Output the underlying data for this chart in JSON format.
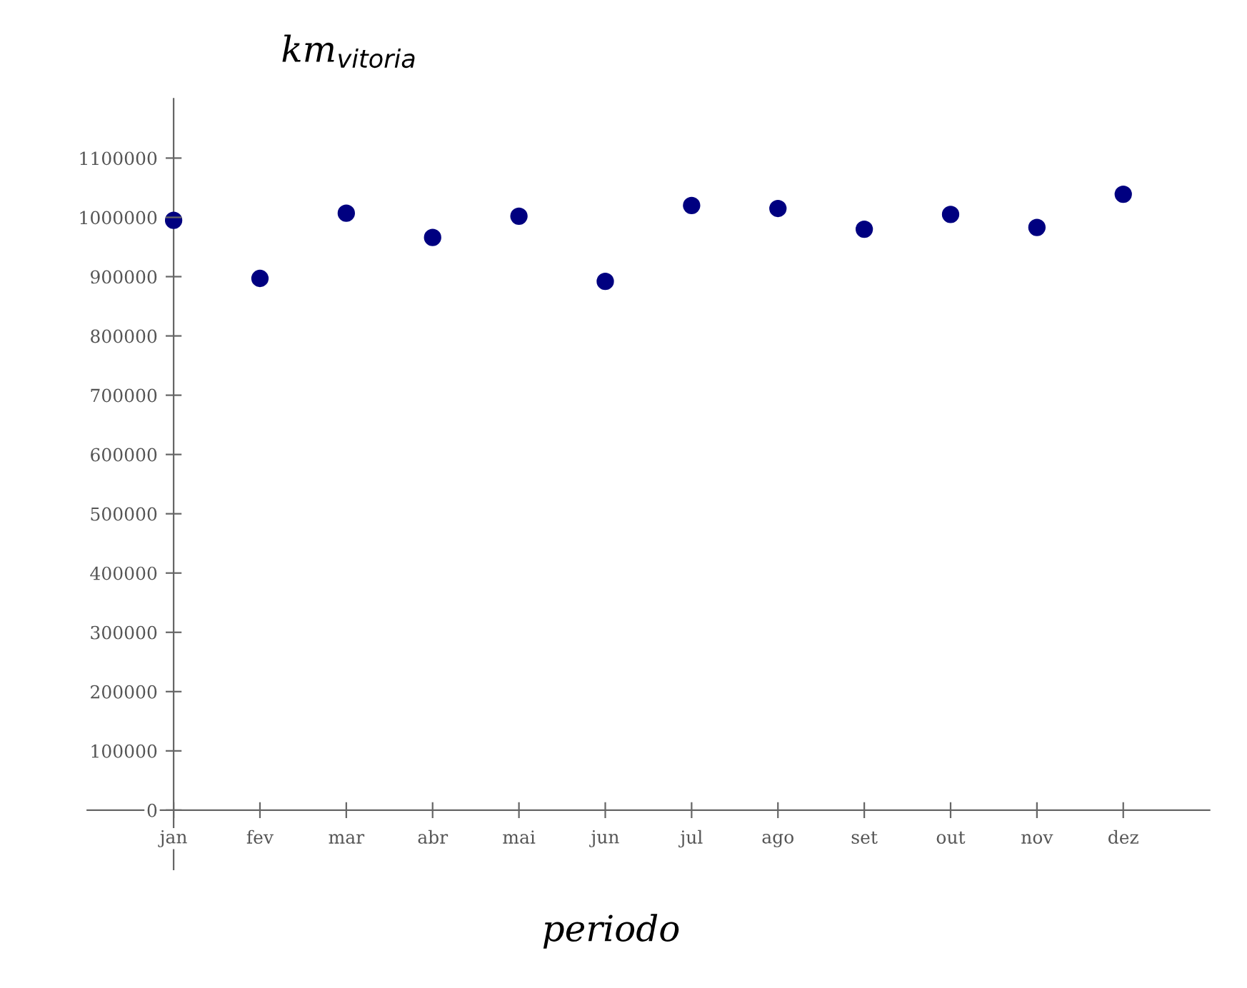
{
  "chart_data": {
    "type": "scatter",
    "ylabel": "km$_{vitoria}$",
    "xlabel": "periodo",
    "categories": [
      "jan",
      "fev",
      "mar",
      "abr",
      "mai",
      "jun",
      "jul",
      "ago",
      "set",
      "out",
      "nov",
      "dez"
    ],
    "series": [
      {
        "color": "#000080",
        "values": [
          995000,
          897000,
          1007000,
          966000,
          1002000,
          892000,
          1020000,
          1015000,
          980000,
          1005000,
          983000,
          1039000
        ]
      }
    ],
    "ylim": [
      -100000,
      1200000
    ],
    "yticks": [
      0,
      100000,
      200000,
      300000,
      400000,
      500000,
      600000,
      700000,
      800000,
      900000,
      1000000,
      1100000
    ],
    "marker": "circle",
    "grid": false,
    "legend": false
  }
}
